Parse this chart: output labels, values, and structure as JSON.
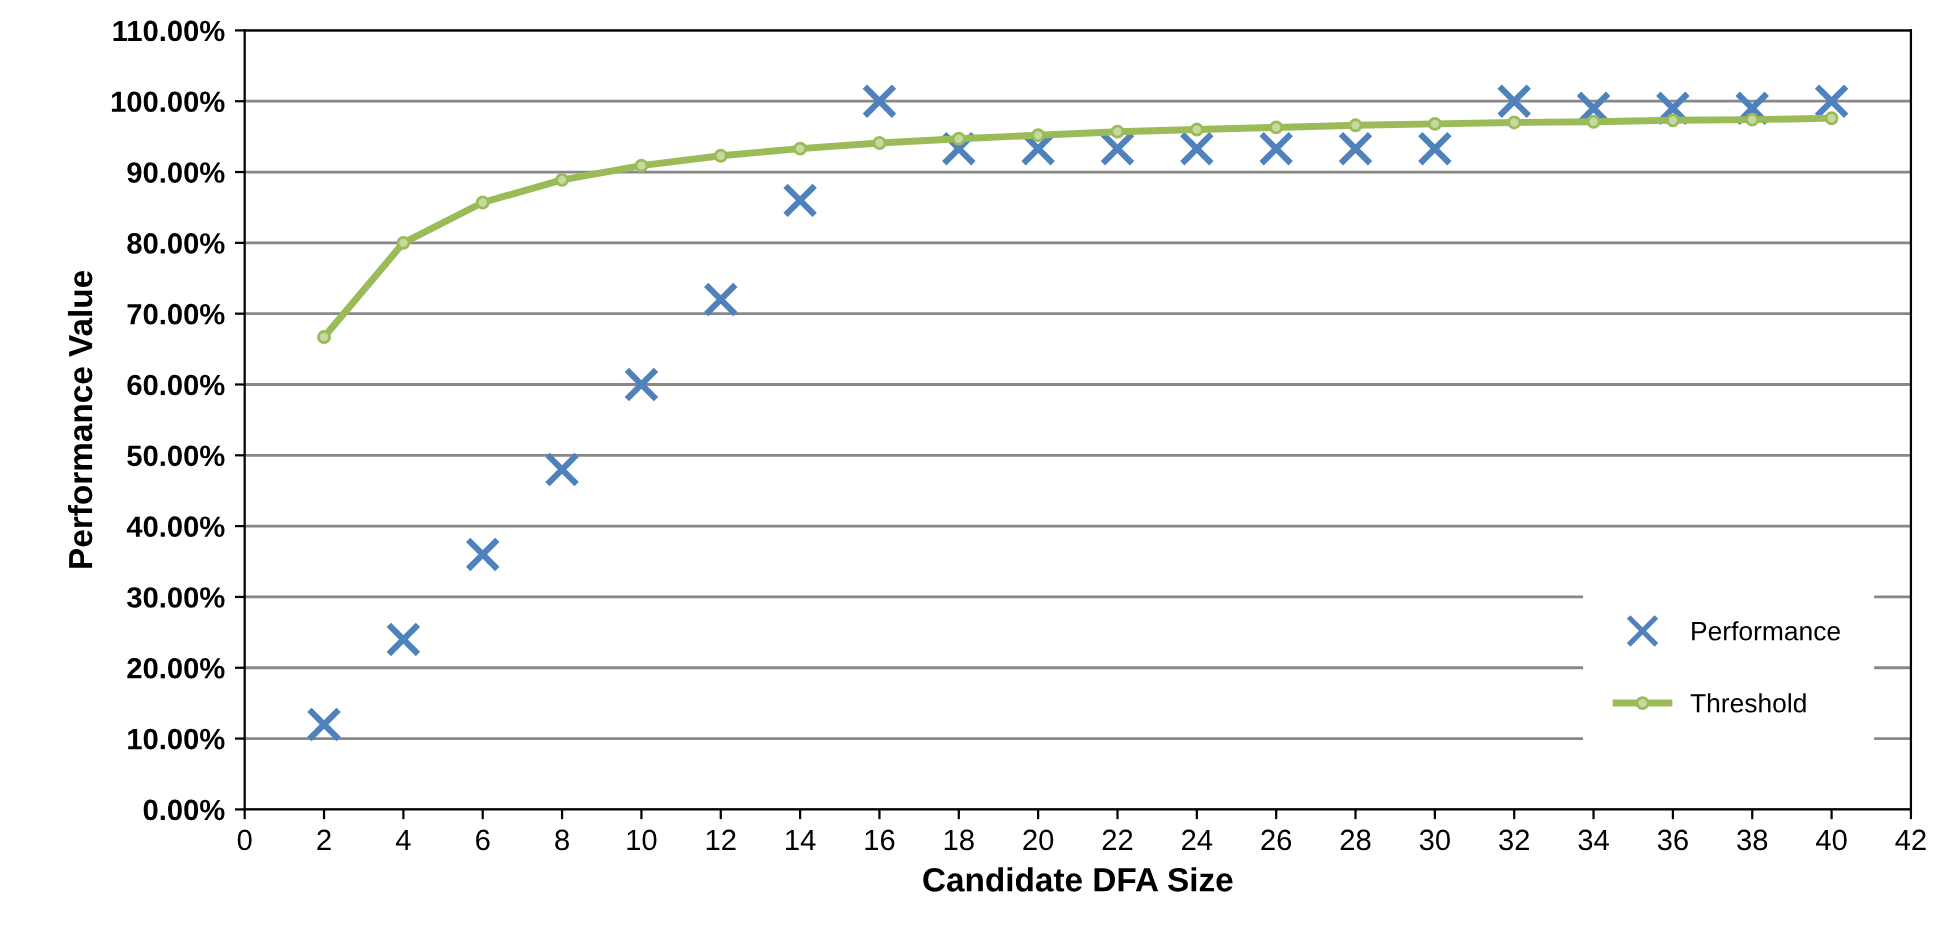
{
  "chart_data": {
    "type": "scatter",
    "xlabel": "Candidate DFA Size",
    "ylabel": "Performance Value",
    "x": [
      2,
      4,
      6,
      8,
      10,
      12,
      14,
      16,
      18,
      20,
      22,
      24,
      26,
      28,
      30,
      32,
      34,
      36,
      38,
      40
    ],
    "series": [
      {
        "name": "Performance",
        "marker": "cross",
        "color": "#4f81bd",
        "values": [
          12,
          24,
          36,
          48,
          60,
          72,
          86,
          100,
          93.3,
          93.3,
          93.3,
          93.3,
          93.3,
          93.3,
          93.3,
          100,
          99,
          99,
          99,
          100
        ]
      },
      {
        "name": "Threshold",
        "type": "line",
        "marker": "circle",
        "line_style": "solid",
        "color": "#9bbb59",
        "values": [
          66.7,
          80,
          85.7,
          88.9,
          90.9,
          92.3,
          93.3,
          94.1,
          94.7,
          95.2,
          95.7,
          96,
          96.3,
          96.6,
          96.8,
          97,
          97.1,
          97.3,
          97.4,
          97.6
        ]
      }
    ],
    "xlim": [
      0,
      42
    ],
    "xticks": [
      0,
      2,
      4,
      6,
      8,
      10,
      12,
      14,
      16,
      18,
      20,
      22,
      24,
      26,
      28,
      30,
      32,
      34,
      36,
      38,
      40,
      42
    ],
    "ylim": [
      0,
      110
    ],
    "yticks": [
      {
        "value": 0,
        "label": "0.00%"
      },
      {
        "value": 10,
        "label": "10.00%"
      },
      {
        "value": 20,
        "label": "20.00%"
      },
      {
        "value": 30,
        "label": "30.00%"
      },
      {
        "value": 40,
        "label": "40.00%"
      },
      {
        "value": 50,
        "label": "50.00%"
      },
      {
        "value": 60,
        "label": "60.00%"
      },
      {
        "value": 70,
        "label": "70.00%"
      },
      {
        "value": 80,
        "label": "80.00%"
      },
      {
        "value": 90,
        "label": "90.00%"
      },
      {
        "value": 100,
        "label": "100.00%"
      },
      {
        "value": 110,
        "label": "110.00%"
      }
    ],
    "grid": "y",
    "legend": "bottom right"
  }
}
